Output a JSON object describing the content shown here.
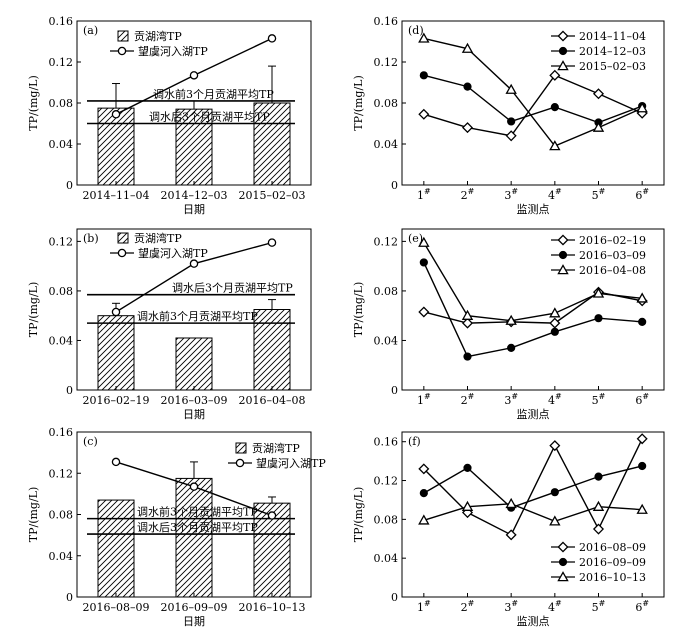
{
  "chart_data": [
    {
      "id": "a",
      "type": "bar",
      "panel_label": "(a)",
      "xlabel": "日期",
      "ylabel": "TP/(mg/L)",
      "ylim": [
        0,
        0.16
      ],
      "yticks": [
        "0",
        "0.04",
        "0.08",
        "0.12",
        "0.16"
      ],
      "categories": [
        "2014–11–04",
        "2014–12–03",
        "2015–02–03"
      ],
      "legend_position": "top-left",
      "series": [
        {
          "name": "贡湖湾TP",
          "kind": "bar",
          "values": [
            0.075,
            0.074,
            0.08
          ],
          "errors": [
            0.024,
            0.008,
            0.036
          ]
        },
        {
          "name": "望虞河入湖TP",
          "kind": "line",
          "marker": "circle-open",
          "values": [
            0.069,
            0.107,
            0.143
          ]
        }
      ],
      "reference_lines": [
        {
          "label": "调水前3个月贡湖平均TP",
          "value": 0.082
        },
        {
          "label": "调水后3个月贡湖平均TP",
          "value": 0.06
        }
      ]
    },
    {
      "id": "b",
      "type": "bar",
      "panel_label": "(b)",
      "xlabel": "日期",
      "ylabel": "TP/(mg/L)",
      "ylim": [
        0,
        0.13
      ],
      "yticks": [
        "0",
        "0.04",
        "0.08",
        "0.12"
      ],
      "categories": [
        "2016–02–19",
        "2016–03–09",
        "2016–04–08"
      ],
      "legend_position": "top-left",
      "series": [
        {
          "name": "贡湖湾TP",
          "kind": "bar",
          "values": [
            0.06,
            0.042,
            0.065
          ],
          "errors": [
            0.01,
            0.0,
            0.008
          ]
        },
        {
          "name": "望虞河入湖TP",
          "kind": "line",
          "marker": "circle-open",
          "values": [
            0.063,
            0.102,
            0.119
          ]
        }
      ],
      "reference_lines": [
        {
          "label": "调水后3个月贡湖平均TP",
          "value": 0.077
        },
        {
          "label": "调水前3个月贡湖平均TP",
          "value": 0.054
        }
      ]
    },
    {
      "id": "c",
      "type": "bar",
      "panel_label": "(c)",
      "xlabel": "日期",
      "ylabel": "TP/(mg/L)",
      "ylim": [
        0,
        0.16
      ],
      "yticks": [
        "0",
        "0.04",
        "0.08",
        "0.12",
        "0.16"
      ],
      "categories": [
        "2016–08–09",
        "2016–09–09",
        "2016–10–13"
      ],
      "legend_position": "top-right",
      "series": [
        {
          "name": "贡湖湾TP",
          "kind": "bar",
          "values": [
            0.094,
            0.115,
            0.091
          ],
          "errors": [
            0.0,
            0.016,
            0.006
          ]
        },
        {
          "name": "望虞河入湖TP",
          "kind": "line",
          "marker": "circle-open",
          "values": [
            0.131,
            0.107,
            0.079
          ]
        }
      ],
      "reference_lines": [
        {
          "label": "调水前3个月贡湖平均TP",
          "value": 0.076
        },
        {
          "label": "调水后3个月贡湖平均TP",
          "value": 0.061
        }
      ]
    },
    {
      "id": "d",
      "type": "line",
      "panel_label": "(d)",
      "xlabel": "监测点",
      "ylabel": "TP/(mg/L)",
      "ylim": [
        0,
        0.16
      ],
      "yticks": [
        "0",
        "0.04",
        "0.08",
        "0.12",
        "0.16"
      ],
      "categories": [
        "1#",
        "2#",
        "3#",
        "4#",
        "5#",
        "6#"
      ],
      "legend_position": "top-right",
      "series": [
        {
          "name": "2014–11–04",
          "marker": "diamond-open",
          "values": [
            0.069,
            0.056,
            0.048,
            0.107,
            0.089,
            0.07
          ]
        },
        {
          "name": "2014–12–03",
          "marker": "circle-filled",
          "values": [
            0.107,
            0.096,
            0.062,
            0.076,
            0.061,
            0.077
          ]
        },
        {
          "name": "2015–02–03",
          "marker": "triangle-open",
          "values": [
            0.143,
            0.133,
            0.093,
            0.038,
            0.056,
            0.075
          ]
        }
      ]
    },
    {
      "id": "e",
      "type": "line",
      "panel_label": "(e)",
      "xlabel": "监测点",
      "ylabel": "TP/(mg/L)",
      "ylim": [
        0,
        0.13
      ],
      "yticks": [
        "0",
        "0.04",
        "0.08",
        "0.12"
      ],
      "categories": [
        "1#",
        "2#",
        "3#",
        "4#",
        "5#",
        "6#"
      ],
      "legend_position": "top-right",
      "series": [
        {
          "name": "2016–02–19",
          "marker": "diamond-open",
          "values": [
            0.063,
            0.054,
            0.055,
            0.054,
            0.079,
            0.072
          ]
        },
        {
          "name": "2016–03–09",
          "marker": "circle-filled",
          "values": [
            0.103,
            0.027,
            0.034,
            0.047,
            0.058,
            0.055
          ]
        },
        {
          "name": "2016–04–08",
          "marker": "triangle-open",
          "values": [
            0.119,
            0.06,
            0.056,
            0.062,
            0.078,
            0.074
          ]
        }
      ]
    },
    {
      "id": "f",
      "type": "line",
      "panel_label": "(f)",
      "xlabel": "监测点",
      "ylabel": "TP/(mg/L)",
      "ylim": [
        0,
        0.17
      ],
      "yticks": [
        "0",
        "0.04",
        "0.08",
        "0.12",
        "0.16"
      ],
      "categories": [
        "1#",
        "2#",
        "3#",
        "4#",
        "5#",
        "6#"
      ],
      "legend_position": "bottom-left",
      "series": [
        {
          "name": "2016–08–09",
          "marker": "diamond-open",
          "values": [
            0.132,
            0.087,
            0.064,
            0.156,
            0.07,
            0.163
          ]
        },
        {
          "name": "2016–09–09",
          "marker": "circle-filled",
          "values": [
            0.107,
            0.133,
            0.092,
            0.108,
            0.124,
            0.135
          ]
        },
        {
          "name": "2016–10–13",
          "marker": "triangle-open",
          "values": [
            0.079,
            0.093,
            0.096,
            0.078,
            0.093,
            0.09
          ]
        }
      ]
    }
  ]
}
